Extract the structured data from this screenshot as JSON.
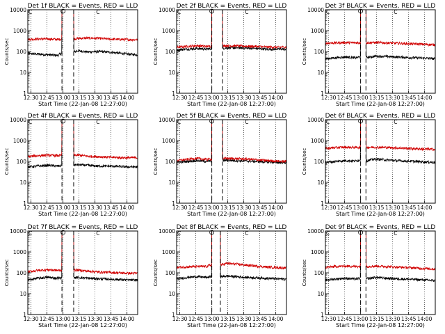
{
  "chart_data": [
    {
      "type": "line",
      "title": "Det 1f BLACK = Events, RED = LLD",
      "xlabel": "Start Time (22-Jan-08 12:27:00)",
      "ylabel": "Counts/sec",
      "y_scale": "log",
      "ylim": [
        1,
        10000
      ],
      "x_ticks": [
        "12:30",
        "12:45",
        "13:00",
        "13:15",
        "13:30",
        "13:45",
        "14:00"
      ],
      "y_ticks": [
        "1",
        "10",
        "100",
        "1000",
        "10000"
      ],
      "marker": "C",
      "markers": [
        "13:00",
        "13:05"
      ],
      "flare_window": [
        "12:59",
        "13:10"
      ],
      "series": [
        {
          "name": "Events",
          "color": "#000000",
          "values": [
            80,
            75,
            70,
            65,
            10000,
            110,
            95,
            100,
            95,
            85,
            75,
            70
          ]
        },
        {
          "name": "LLD",
          "color": "#d00000",
          "values": [
            380,
            400,
            400,
            380,
            10000,
            420,
            440,
            430,
            400,
            380,
            370,
            370
          ]
        }
      ]
    },
    {
      "type": "line",
      "title": "Det 2f BLACK = Events, RED = LLD",
      "xlabel": "Start Time (22-Jan-08 12:27:00)",
      "ylabel": "Counts/sec",
      "y_scale": "log",
      "ylim": [
        1,
        10000
      ],
      "x_ticks": [
        "12:30",
        "12:45",
        "13:00",
        "13:15",
        "13:30",
        "13:45",
        "14:00"
      ],
      "y_ticks": [
        "1",
        "10",
        "100",
        "1000",
        "10000"
      ],
      "marker": "C",
      "markers": [
        "13:00",
        "13:05"
      ],
      "flare_window": [
        "13:00",
        "13:10"
      ],
      "series": [
        {
          "name": "Events",
          "color": "#000000",
          "values": [
            120,
            130,
            140,
            130,
            10000,
            150,
            150,
            145,
            140,
            130,
            130,
            130
          ]
        },
        {
          "name": "LLD",
          "color": "#d00000",
          "values": [
            160,
            175,
            190,
            175,
            10000,
            190,
            185,
            180,
            175,
            165,
            160,
            165
          ]
        }
      ]
    },
    {
      "type": "line",
      "title": "Det 3f BLACK = Events, RED = LLD",
      "xlabel": "Start Time (22-Jan-08 12:27:00)",
      "ylabel": "Counts/sec",
      "y_scale": "log",
      "ylim": [
        1,
        10000
      ],
      "x_ticks": [
        "12:30",
        "12:45",
        "13:00",
        "13:15",
        "13:30",
        "13:45",
        "14:00"
      ],
      "y_ticks": [
        "1",
        "10",
        "100",
        "1000",
        "10000"
      ],
      "marker": "C",
      "markers": [
        "13:00",
        "13:05"
      ],
      "flare_window": [
        "13:00",
        "13:05"
      ],
      "series": [
        {
          "name": "Events",
          "color": "#000000",
          "values": [
            45,
            50,
            55,
            50,
            10000,
            60,
            58,
            55,
            52,
            50,
            48,
            45
          ]
        },
        {
          "name": "LLD",
          "color": "#d00000",
          "values": [
            250,
            260,
            270,
            260,
            10000,
            270,
            260,
            250,
            240,
            230,
            220,
            210
          ]
        }
      ]
    },
    {
      "type": "line",
      "title": "Det 4f BLACK = Events, RED = LLD",
      "xlabel": "Start Time (22-Jan-08 12:27:00)",
      "ylabel": "Counts/sec",
      "y_scale": "log",
      "ylim": [
        1,
        10000
      ],
      "x_ticks": [
        "12:30",
        "12:45",
        "13:00",
        "13:15",
        "13:30",
        "13:45",
        "14:00"
      ],
      "y_ticks": [
        "1",
        "10",
        "100",
        "1000",
        "10000"
      ],
      "marker": "C",
      "markers": [
        "13:00",
        "13:05"
      ],
      "flare_window": [
        "12:59",
        "13:10"
      ],
      "series": [
        {
          "name": "Events",
          "color": "#000000",
          "values": [
            55,
            60,
            65,
            60,
            10000,
            70,
            65,
            60,
            60,
            58,
            55,
            55
          ]
        },
        {
          "name": "LLD",
          "color": "#d00000",
          "values": [
            170,
            190,
            200,
            190,
            10000,
            200,
            180,
            170,
            160,
            155,
            150,
            150
          ]
        }
      ]
    },
    {
      "type": "line",
      "title": "Det 5f BLACK = Events, RED = LLD",
      "xlabel": "Start Time (22-Jan-08 12:27:00)",
      "ylabel": "Counts/sec",
      "y_scale": "log",
      "ylim": [
        1,
        10000
      ],
      "x_ticks": [
        "12:30",
        "12:45",
        "13:00",
        "13:15",
        "13:30",
        "13:45",
        "14:00"
      ],
      "y_ticks": [
        "1",
        "10",
        "100",
        "1000",
        "10000"
      ],
      "marker": "C",
      "markers": [
        "13:00",
        "13:05"
      ],
      "flare_window": [
        "13:00",
        "13:10"
      ],
      "series": [
        {
          "name": "Events",
          "color": "#000000",
          "values": [
            90,
            100,
            110,
            100,
            10000,
            115,
            110,
            105,
            100,
            95,
            90,
            88
          ]
        },
        {
          "name": "LLD",
          "color": "#d00000",
          "values": [
            110,
            125,
            140,
            125,
            10000,
            140,
            135,
            130,
            120,
            110,
            105,
            100
          ]
        }
      ]
    },
    {
      "type": "line",
      "title": "Det 6f BLACK = Events, RED = LLD",
      "xlabel": "Start Time (22-Jan-08 12:27:00)",
      "ylabel": "Counts/sec",
      "y_scale": "log",
      "ylim": [
        1,
        10000
      ],
      "x_ticks": [
        "12:30",
        "12:45",
        "13:00",
        "13:15",
        "13:30",
        "13:45",
        "14:00"
      ],
      "y_ticks": [
        "1",
        "10",
        "100",
        "1000",
        "10000"
      ],
      "marker": "C",
      "markers": [
        "13:00",
        "13:05"
      ],
      "flare_window": [
        "13:00",
        "13:05"
      ],
      "series": [
        {
          "name": "Events",
          "color": "#000000",
          "values": [
            90,
            100,
            110,
            105,
            10000,
            130,
            120,
            110,
            105,
            100,
            95,
            90
          ]
        },
        {
          "name": "LLD",
          "color": "#d00000",
          "values": [
            420,
            460,
            480,
            470,
            10000,
            480,
            470,
            450,
            430,
            410,
            390,
            380
          ]
        }
      ]
    },
    {
      "type": "line",
      "title": "Det 7f BLACK = Events, RED = LLD",
      "xlabel": "Start Time (22-Jan-08 12:27:00)",
      "ylabel": "Counts/sec",
      "y_scale": "log",
      "ylim": [
        1,
        10000
      ],
      "x_ticks": [
        "12:30",
        "12:45",
        "13:00",
        "13:15",
        "13:30",
        "13:45",
        "14:00"
      ],
      "y_ticks": [
        "1",
        "10",
        "100",
        "1000",
        "10000"
      ],
      "marker": "C",
      "markers": [
        "13:00",
        "13:05"
      ],
      "flare_window": [
        "12:59",
        "13:10"
      ],
      "series": [
        {
          "name": "Events",
          "color": "#000000",
          "values": [
            45,
            55,
            60,
            55,
            10000,
            60,
            55,
            52,
            50,
            48,
            45,
            45
          ]
        },
        {
          "name": "LLD",
          "color": "#d00000",
          "values": [
            110,
            130,
            140,
            130,
            10000,
            135,
            120,
            110,
            105,
            100,
            95,
            95
          ]
        }
      ]
    },
    {
      "type": "line",
      "title": "Det 8f BLACK = Events, RED = LLD",
      "xlabel": "Start Time (22-Jan-08 12:27:00)",
      "ylabel": "Counts/sec",
      "y_scale": "log",
      "ylim": [
        1,
        10000
      ],
      "x_ticks": [
        "12:30",
        "12:45",
        "13:00",
        "13:15",
        "13:30",
        "13:45",
        "14:00"
      ],
      "y_ticks": [
        "1",
        "10",
        "100",
        "1000",
        "10000"
      ],
      "marker": "C",
      "markers": [
        "13:00",
        "13:05"
      ],
      "flare_window": [
        "13:00",
        "13:08"
      ],
      "series": [
        {
          "name": "Events",
          "color": "#000000",
          "values": [
            50,
            60,
            65,
            60,
            10000,
            70,
            65,
            60,
            58,
            55,
            52,
            50
          ]
        },
        {
          "name": "LLD",
          "color": "#d00000",
          "values": [
            180,
            190,
            200,
            200,
            10000,
            280,
            260,
            230,
            210,
            190,
            180,
            170
          ]
        }
      ]
    },
    {
      "type": "line",
      "title": "Det 9f BLACK = Events, RED = LLD",
      "xlabel": "Start Time (22-Jan-08 12:27:00)",
      "ylabel": "Counts/sec",
      "y_scale": "log",
      "ylim": [
        1,
        10000
      ],
      "x_ticks": [
        "12:30",
        "12:45",
        "13:00",
        "13:15",
        "13:30",
        "13:45",
        "14:00"
      ],
      "y_ticks": [
        "1",
        "10",
        "100",
        "1000",
        "10000"
      ],
      "marker": "C",
      "markers": [
        "13:00",
        "13:05"
      ],
      "flare_window": [
        "13:00",
        "13:05"
      ],
      "series": [
        {
          "name": "Events",
          "color": "#000000",
          "values": [
            45,
            50,
            55,
            50,
            10000,
            60,
            55,
            52,
            50,
            48,
            45,
            42
          ]
        },
        {
          "name": "LLD",
          "color": "#d00000",
          "values": [
            180,
            200,
            210,
            200,
            10000,
            210,
            200,
            190,
            180,
            170,
            160,
            150
          ]
        }
      ]
    }
  ]
}
